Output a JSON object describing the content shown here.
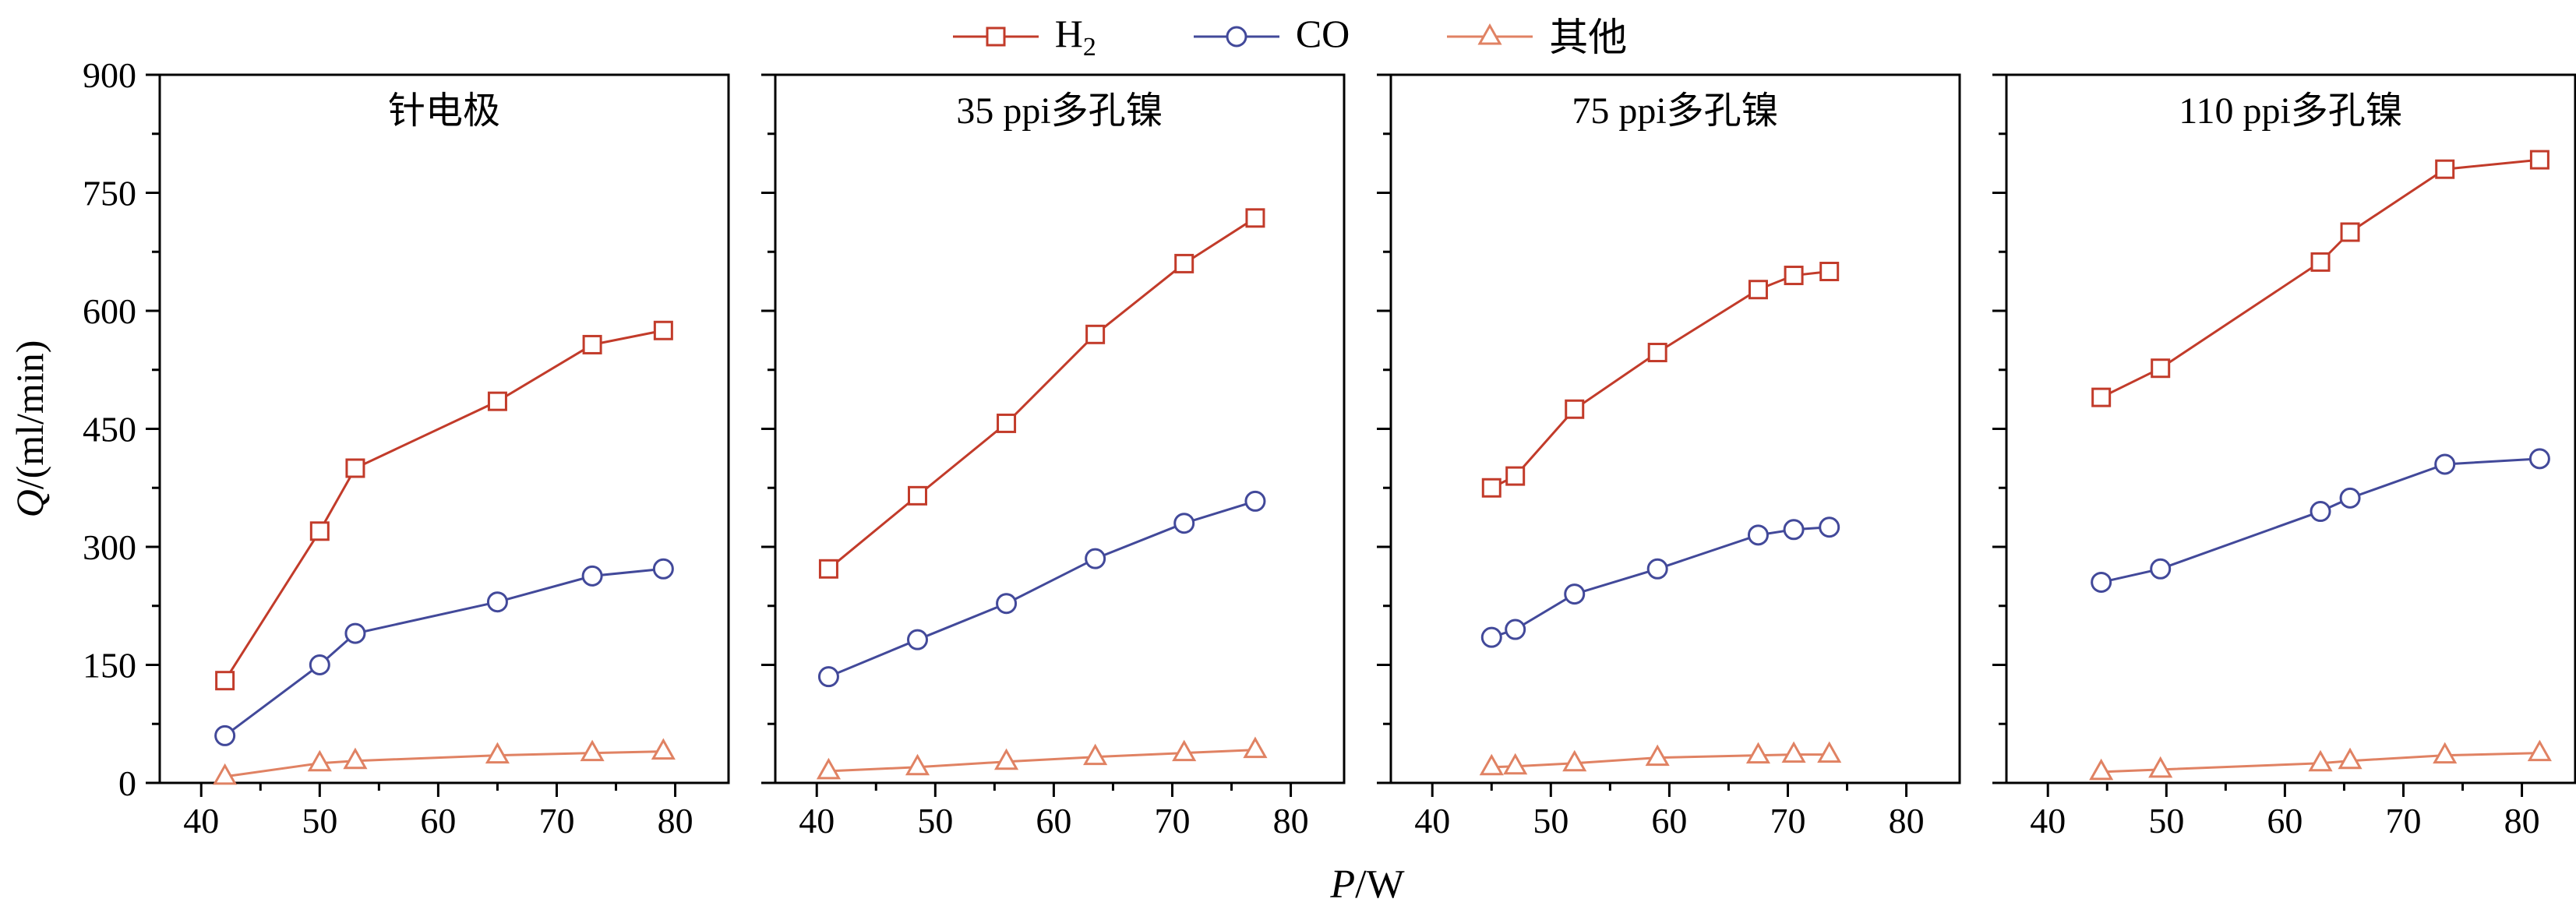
{
  "chart_data": {
    "type": "line",
    "legend_position": "top-center",
    "grid": false,
    "axis": {
      "xlabel": "P/W",
      "ylabel": "Q/(ml/min)",
      "xlim": [
        36.5,
        84.5
      ],
      "ylim": [
        0,
        900
      ],
      "xticks": [
        40,
        50,
        60,
        70,
        80
      ],
      "yticks": [
        0,
        150,
        300,
        450,
        600,
        750,
        900
      ],
      "x_minor_step": 5,
      "y_minor_step": 75
    },
    "series_defs": [
      {
        "id": "h2",
        "label": "H",
        "sub": "2",
        "color": "#c23b2a",
        "marker": "square"
      },
      {
        "id": "co",
        "label": "CO",
        "sub": "",
        "color": "#42499a",
        "marker": "circle"
      },
      {
        "id": "other",
        "label": "其他",
        "sub": "",
        "color": "#e08263",
        "marker": "triangle"
      }
    ],
    "panels": [
      {
        "title": "针电极",
        "x": [
          42,
          50,
          53,
          65,
          73,
          79
        ],
        "series": {
          "h2": [
            130,
            320,
            400,
            485,
            557,
            575
          ],
          "co": [
            60,
            150,
            190,
            230,
            263,
            272
          ],
          "other": [
            8,
            25,
            28,
            35,
            38,
            40
          ]
        }
      },
      {
        "title": "35 ppi多孔镍",
        "x": [
          41,
          48.5,
          56,
          63.5,
          71,
          77
        ],
        "series": {
          "h2": [
            272,
            365,
            457,
            570,
            660,
            718
          ],
          "co": [
            135,
            182,
            228,
            285,
            330,
            358
          ],
          "other": [
            15,
            20,
            27,
            33,
            38,
            42
          ]
        }
      },
      {
        "title": "75 ppi多孔镍",
        "x": [
          45,
          47,
          52,
          59,
          67.5,
          70.5,
          73.5
        ],
        "series": {
          "h2": [
            375,
            390,
            475,
            547,
            627,
            645,
            650
          ],
          "co": [
            185,
            195,
            240,
            272,
            315,
            322,
            325
          ],
          "other": [
            20,
            21,
            25,
            32,
            35,
            36,
            36
          ]
        }
      },
      {
        "title": "110 ppi多孔镍",
        "x": [
          44.5,
          49.5,
          63,
          65.5,
          73.5,
          81.5
        ],
        "series": {
          "h2": [
            490,
            527,
            662,
            700,
            780,
            792
          ],
          "co": [
            255,
            272,
            345,
            362,
            405,
            412
          ],
          "other": [
            14,
            17,
            25,
            28,
            35,
            38
          ]
        }
      }
    ]
  }
}
